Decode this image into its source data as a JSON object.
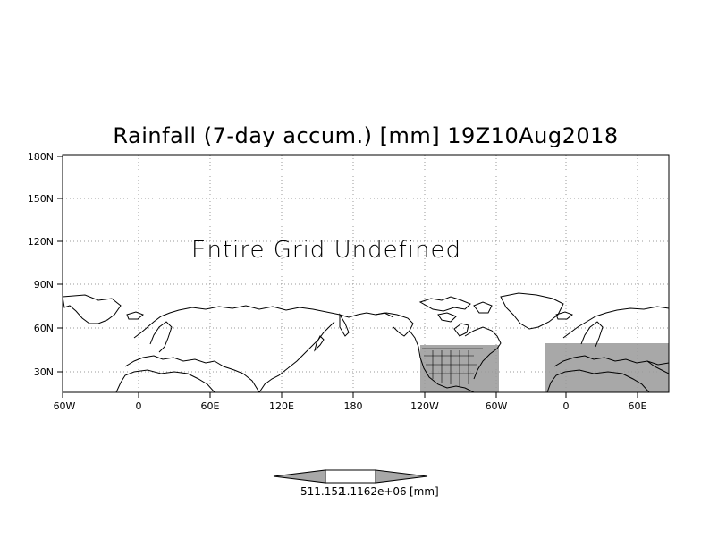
{
  "title": "Rainfall (7-day accum.) [mm] 19Z10Aug2018",
  "message": "Entire Grid Undefined",
  "y_ticks": [
    "180N",
    "150N",
    "120N",
    "90N",
    "60N",
    "30N"
  ],
  "x_ticks": [
    "60W",
    "0",
    "60E",
    "120E",
    "180",
    "120W",
    "60W",
    "0",
    "60E"
  ],
  "colorbar": {
    "left_label": "511.152",
    "mid_label": "1.1162e+06",
    "unit_label": "[mm]",
    "fill_color": "#a8a8a8"
  },
  "colors": {
    "undefined_region": "#a8a8a8",
    "grid": "#9a9a9a",
    "coast": "#000000"
  }
}
